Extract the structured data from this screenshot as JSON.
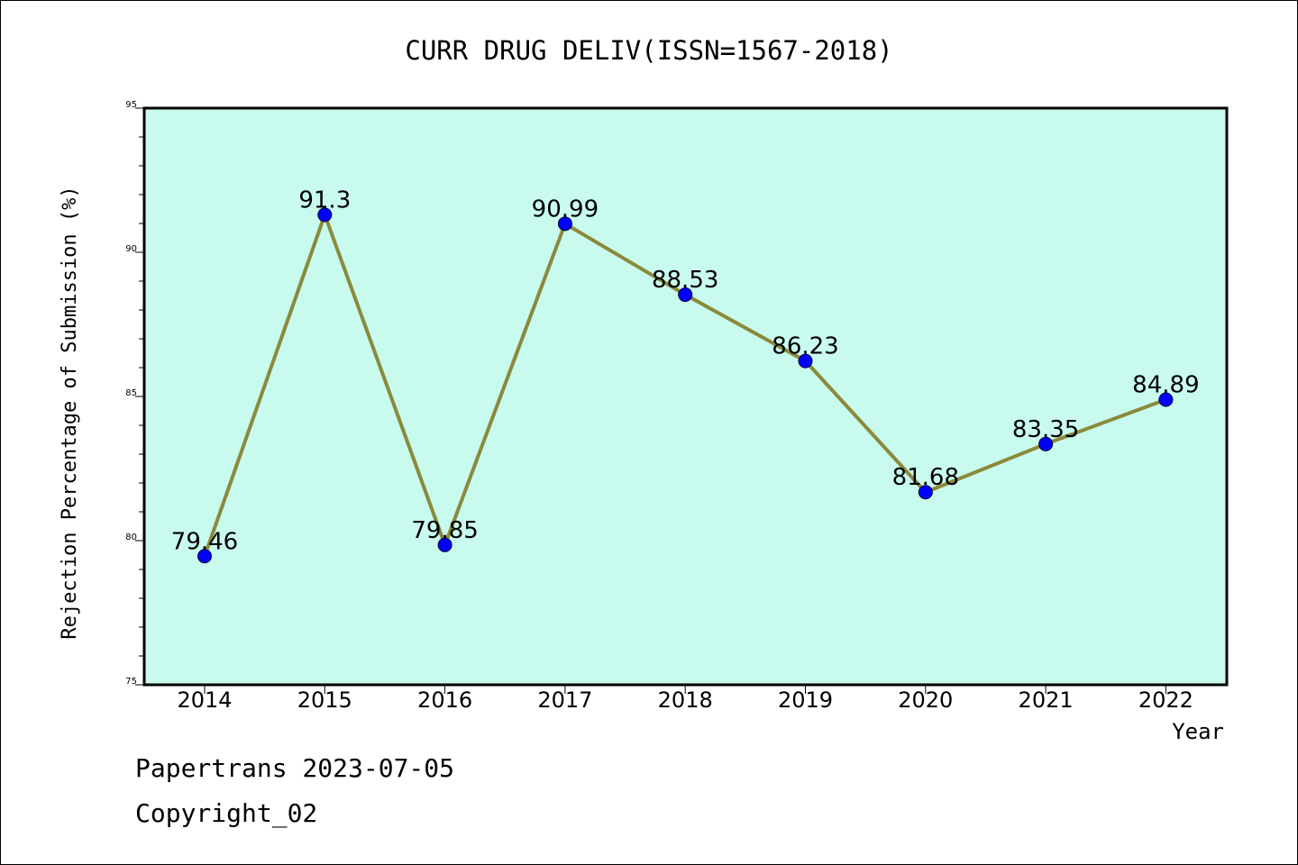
{
  "chart_data": {
    "type": "line",
    "title": "CURR DRUG DELIV(ISSN=1567-2018)",
    "xlabel": "Year",
    "ylabel": "Rejection Percentage of Submission (%)",
    "categories": [
      "2014",
      "2015",
      "2016",
      "2017",
      "2018",
      "2019",
      "2020",
      "2021",
      "2022"
    ],
    "series": [
      {
        "values": [
          79.46,
          91.3,
          79.85,
          90.99,
          88.53,
          86.23,
          81.68,
          83.35,
          84.89
        ],
        "labels": [
          "79.46",
          "91.3",
          "79.85",
          "90.99",
          "88.53",
          "86.23",
          "81.68",
          "83.35",
          "84.89"
        ]
      }
    ],
    "ylim": [
      75,
      95
    ],
    "yticks": [
      "75",
      "80",
      "85",
      "90",
      "95"
    ],
    "grid": false,
    "colors": {
      "plot_bg": "#c8fbee",
      "line": "#8b8a3a",
      "marker": "#0000ff"
    }
  },
  "footer": {
    "line1": "Papertrans 2023-07-05",
    "line2": "Copyright_02"
  }
}
